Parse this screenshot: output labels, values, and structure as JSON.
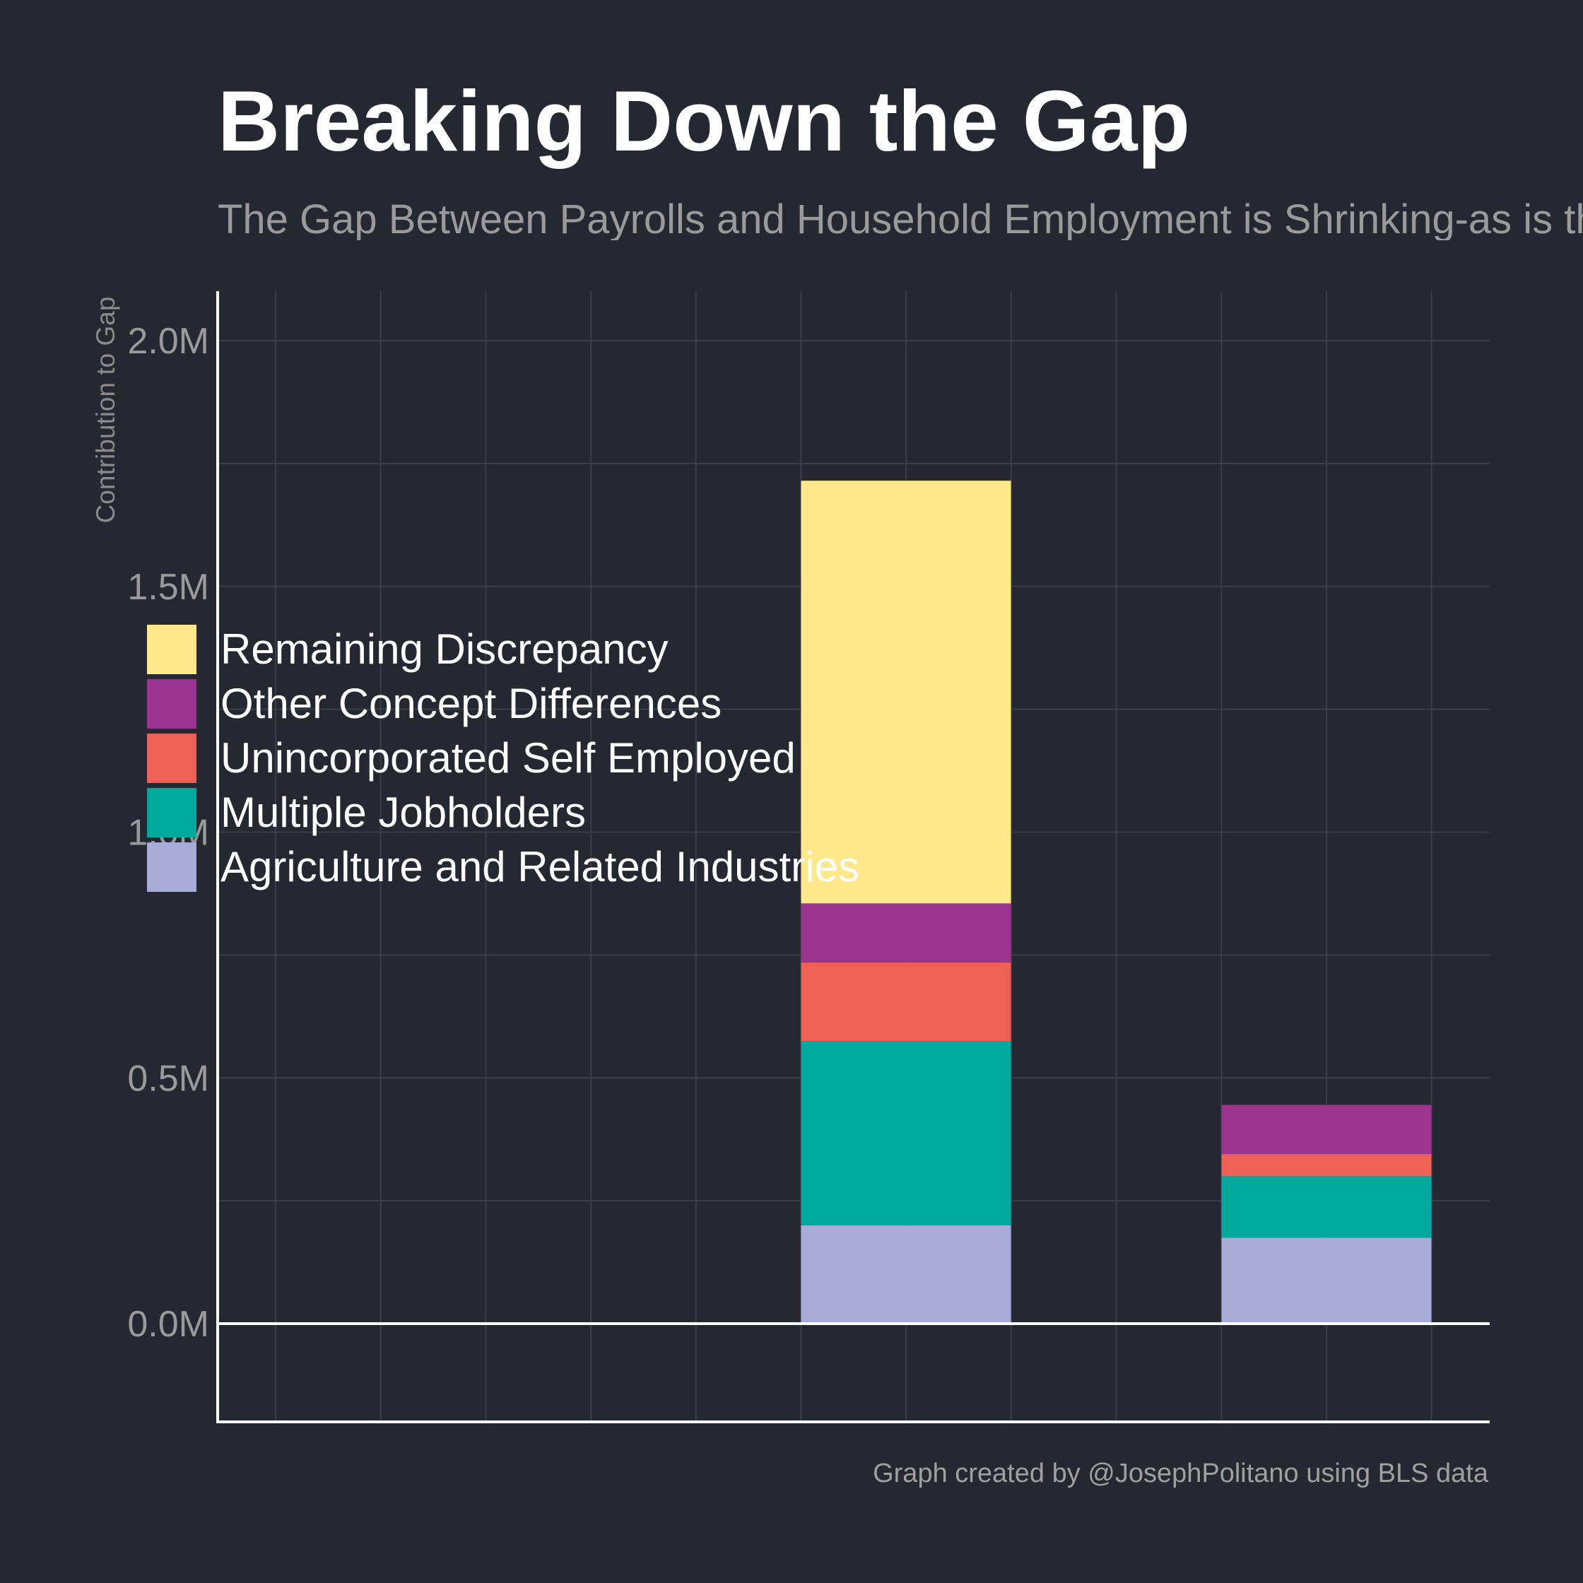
{
  "chart_data": {
    "type": "bar",
    "stacked": true,
    "title": "Breaking Down the Gap",
    "subtitle": "The Gap Between Payrolls and Household Employment is Shrinking-as is th",
    "ylabel": "Contribution to Gap",
    "caption": "Graph created by @JosephPolitano using BLS data",
    "ylim": [
      -0.4,
      2.2
    ],
    "yticks": [
      0.0,
      0.5,
      1.0,
      1.5,
      2.0
    ],
    "ytick_labels": [
      "0.0M",
      "0.5M",
      "1.0M",
      "1.5M",
      "2.0M"
    ],
    "grid": true,
    "legend_position": "left",
    "series": [
      {
        "name": "Agriculture and Related Industries",
        "color": "#a7acd9",
        "values": [
          0.2,
          0.175
        ]
      },
      {
        "name": "Multiple Jobholders",
        "color": "#00a99d",
        "values": [
          0.375,
          0.125
        ]
      },
      {
        "name": "Unincorporated Self Employed",
        "color": "#ee6055",
        "values": [
          0.16,
          0.045
        ]
      },
      {
        "name": "Other Concept Differences",
        "color": "#9a348e",
        "values": [
          0.12,
          0.1
        ]
      },
      {
        "name": "Remaining Discrepancy",
        "color": "#ffe98a",
        "values": [
          0.86,
          0.0
        ]
      }
    ]
  }
}
